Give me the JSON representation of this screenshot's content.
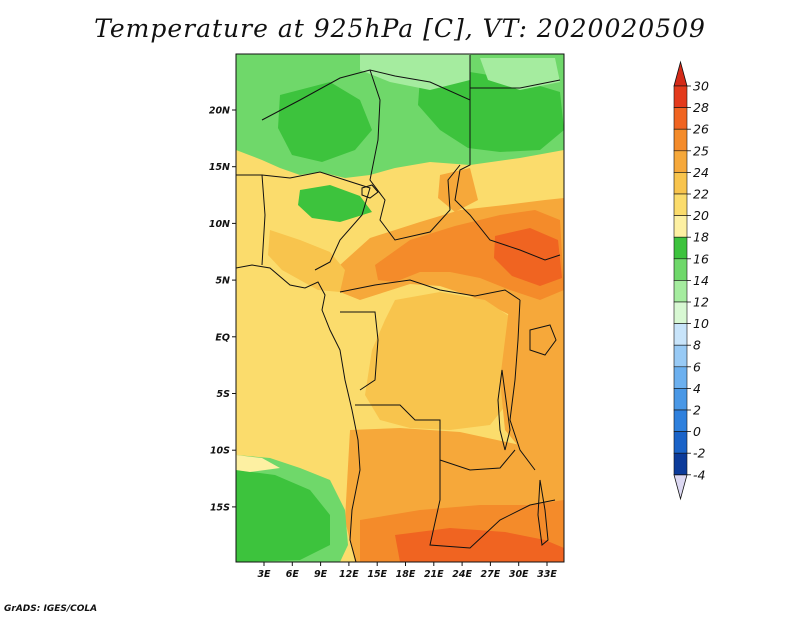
{
  "title": "Temperature at 925hPa [C], VT: 2020020509",
  "credit": "GrADS: IGES/COLA",
  "map": {
    "lon_ticks": [
      "3E",
      "6E",
      "9E",
      "12E",
      "15E",
      "18E",
      "21E",
      "24E",
      "27E",
      "30E",
      "33E"
    ],
    "lat_ticks": [
      "20N",
      "15N",
      "10N",
      "5N",
      "EQ",
      "5S",
      "10S",
      "15S"
    ]
  },
  "colorbar": {
    "levels": [
      "30",
      "28",
      "26",
      "25",
      "24",
      "22",
      "20",
      "18",
      "16",
      "14",
      "12",
      "10",
      "8",
      "6",
      "4",
      "2",
      "0",
      "-2",
      "-4"
    ],
    "colors": [
      "#e33a1c",
      "#f06421",
      "#f48b2a",
      "#f6a83a",
      "#f8c44d",
      "#fbdc6c",
      "#fdf0a2",
      "#3dc33d",
      "#6fd86a",
      "#a5ec9f",
      "#d8f8d3",
      "#c8e4fa",
      "#98caf5",
      "#6cb0ef",
      "#4a98e6",
      "#2e80dd",
      "#1a63c8",
      "#0c3b9a",
      "#07116a"
    ],
    "top_color": "#d42a18",
    "bottom_color": "#dcd8f2"
  }
}
